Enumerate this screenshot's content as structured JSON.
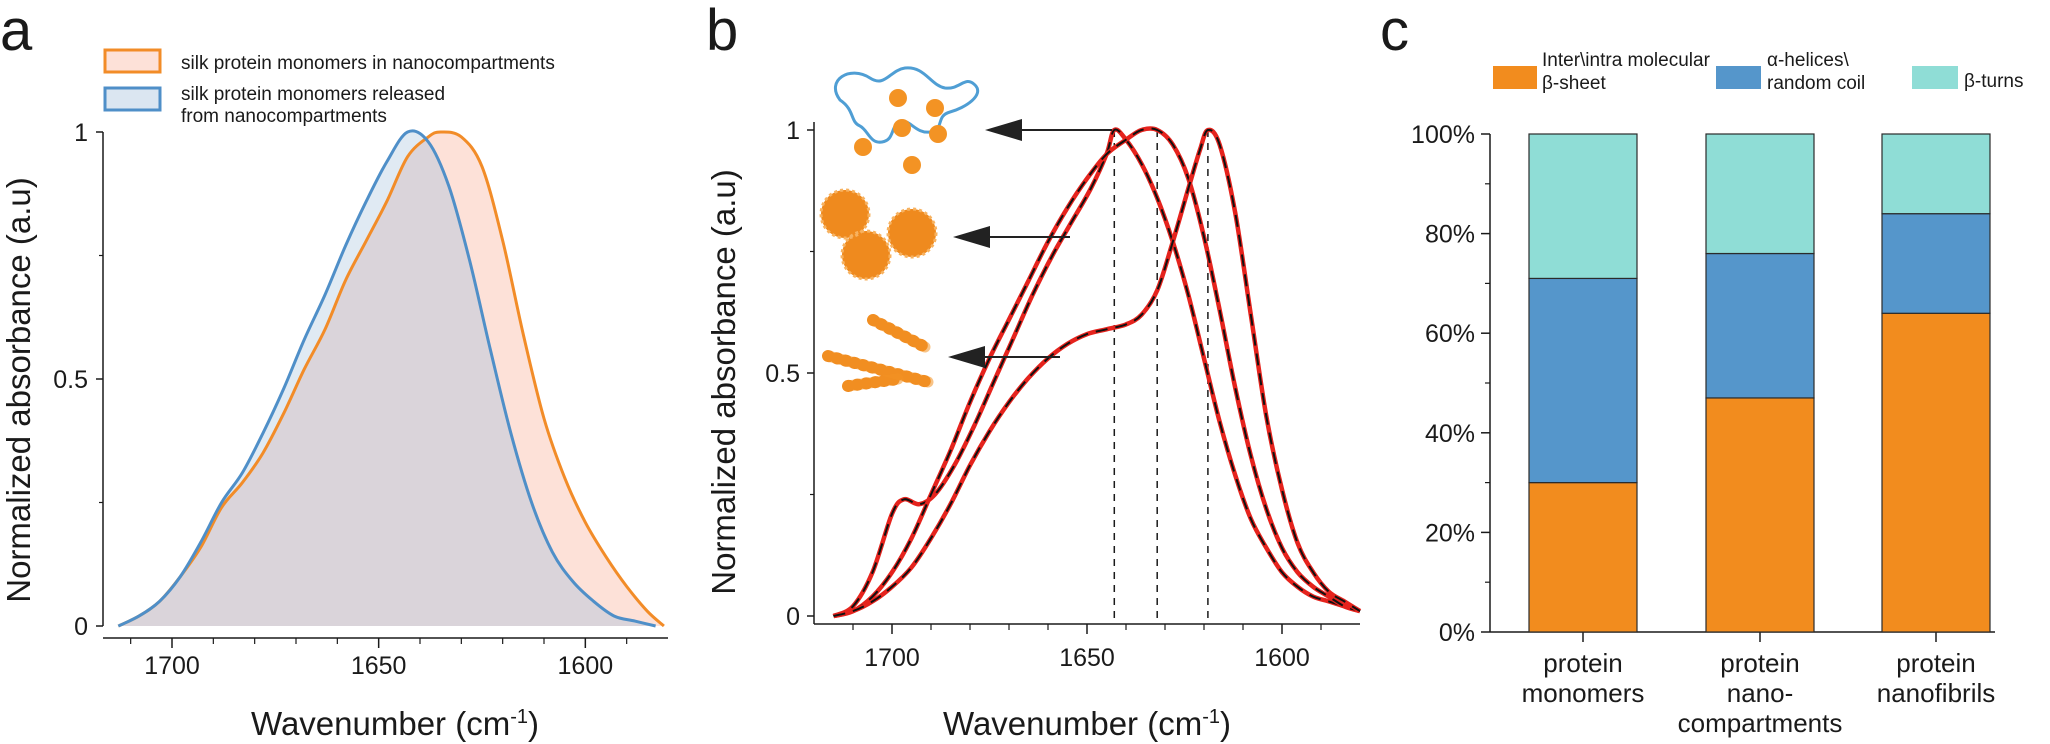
{
  "panels": {
    "a": {
      "letter": "a"
    },
    "b": {
      "letter": "b"
    },
    "c": {
      "letter": "c"
    }
  },
  "colors": {
    "orange": "#f28c28",
    "blue": "#4f8fc8",
    "orange_fill": "#fde1d8",
    "blue_fill": "#dbe6f1",
    "overlap_fill": "#dad4da",
    "fit_red": "#e5231d",
    "beta_sheet": "#f28c1e",
    "helix": "#5596cb",
    "turns": "#8fddd6",
    "arrow": "#222222"
  },
  "chart_data": [
    {
      "type": "area",
      "panel": "a",
      "xlabel": "Wavenumber (cm",
      "xlabel_sup": "-1",
      "xlabel_end": ")",
      "ylabel": "Normalized absorbance (a.u)",
      "xlim": [
        1715,
        1580
      ],
      "ylim": [
        0,
        1
      ],
      "x_ticks": [
        1700,
        1650,
        1600
      ],
      "x_minor_ticks": [
        1710,
        1690,
        1680,
        1670,
        1660,
        1640,
        1630,
        1620,
        1610,
        1590
      ],
      "y_ticks": [
        0,
        0.5,
        1
      ],
      "y_tick_labels": [
        "0",
        "0.5",
        "1"
      ],
      "series": [
        {
          "name": "silk protein monomers in nanocompartments",
          "color": "orange",
          "x": [
            1713,
            1708,
            1703,
            1698,
            1693,
            1688,
            1683,
            1678,
            1673,
            1668,
            1663,
            1658,
            1653,
            1648,
            1643,
            1638,
            1635,
            1630,
            1625,
            1620,
            1615,
            1610,
            1605,
            1600,
            1595,
            1590,
            1585,
            1581
          ],
          "y": [
            0.0,
            0.02,
            0.05,
            0.1,
            0.16,
            0.24,
            0.29,
            0.35,
            0.43,
            0.52,
            0.6,
            0.7,
            0.78,
            0.86,
            0.95,
            0.99,
            1.0,
            0.99,
            0.93,
            0.78,
            0.59,
            0.42,
            0.3,
            0.21,
            0.14,
            0.08,
            0.03,
            0.0
          ]
        },
        {
          "name": "silk protein monomers released from nanocompartments",
          "color": "blue",
          "x": [
            1713,
            1708,
            1703,
            1698,
            1693,
            1688,
            1683,
            1678,
            1673,
            1668,
            1663,
            1658,
            1653,
            1648,
            1643,
            1638,
            1633,
            1628,
            1623,
            1618,
            1613,
            1608,
            1603,
            1598,
            1593,
            1588,
            1583
          ],
          "y": [
            0.0,
            0.02,
            0.05,
            0.1,
            0.17,
            0.25,
            0.31,
            0.39,
            0.48,
            0.58,
            0.67,
            0.77,
            0.86,
            0.94,
            1.0,
            0.98,
            0.89,
            0.74,
            0.56,
            0.39,
            0.25,
            0.15,
            0.09,
            0.05,
            0.02,
            0.01,
            0.0
          ]
        }
      ]
    },
    {
      "type": "line",
      "panel": "b",
      "xlabel": "Wavenumber (cm",
      "xlabel_sup": "-1",
      "xlabel_end": ")",
      "ylabel": "Normalized absorbance (a.u)",
      "xlim": [
        1720,
        1580
      ],
      "ylim": [
        0,
        1
      ],
      "x_ticks": [
        1700,
        1650,
        1600
      ],
      "x_minor_ticks": [
        1710,
        1690,
        1680,
        1670,
        1660,
        1640,
        1630,
        1620,
        1610,
        1590
      ],
      "y_ticks": [
        0,
        0.5,
        1
      ],
      "y_tick_labels": [
        "0",
        "0.5",
        "1"
      ],
      "peak_lines": [
        1643,
        1632,
        1619
      ],
      "series": [
        {
          "name": "protein monomers",
          "x": [
            1715,
            1710,
            1705,
            1700,
            1697,
            1693,
            1689,
            1684,
            1679,
            1674,
            1669,
            1664,
            1659,
            1654,
            1649,
            1645,
            1643,
            1640,
            1636,
            1632,
            1628,
            1624,
            1620,
            1616,
            1612,
            1608,
            1604,
            1600,
            1596,
            1592,
            1588,
            1584,
            1580
          ],
          "y": [
            0.0,
            0.02,
            0.09,
            0.21,
            0.24,
            0.23,
            0.25,
            0.31,
            0.39,
            0.48,
            0.57,
            0.66,
            0.74,
            0.81,
            0.88,
            0.95,
            1.0,
            0.98,
            0.93,
            0.86,
            0.77,
            0.66,
            0.53,
            0.4,
            0.29,
            0.2,
            0.14,
            0.09,
            0.06,
            0.04,
            0.03,
            0.02,
            0.01
          ]
        },
        {
          "name": "protein nano-compartments",
          "x": [
            1715,
            1710,
            1705,
            1700,
            1695,
            1690,
            1685,
            1680,
            1675,
            1670,
            1665,
            1660,
            1655,
            1650,
            1645,
            1640,
            1636,
            1632,
            1628,
            1624,
            1620,
            1616,
            1612,
            1608,
            1604,
            1600,
            1596,
            1592,
            1588,
            1584,
            1580
          ],
          "y": [
            0.0,
            0.01,
            0.04,
            0.09,
            0.16,
            0.25,
            0.34,
            0.44,
            0.53,
            0.61,
            0.69,
            0.77,
            0.84,
            0.9,
            0.95,
            0.98,
            1.0,
            1.0,
            0.97,
            0.9,
            0.78,
            0.63,
            0.47,
            0.33,
            0.22,
            0.14,
            0.09,
            0.06,
            0.04,
            0.02,
            0.01
          ]
        },
        {
          "name": "protein nanofibrils",
          "x": [
            1715,
            1710,
            1705,
            1700,
            1695,
            1690,
            1685,
            1680,
            1675,
            1670,
            1665,
            1660,
            1655,
            1650,
            1645,
            1640,
            1636,
            1632,
            1628,
            1624,
            1621,
            1619,
            1616,
            1612,
            1608,
            1604,
            1600,
            1596,
            1592,
            1588,
            1584,
            1580
          ],
          "y": [
            0.0,
            0.01,
            0.03,
            0.06,
            0.1,
            0.16,
            0.23,
            0.31,
            0.38,
            0.44,
            0.49,
            0.53,
            0.56,
            0.58,
            0.59,
            0.6,
            0.62,
            0.67,
            0.77,
            0.88,
            0.96,
            1.0,
            0.97,
            0.83,
            0.62,
            0.41,
            0.26,
            0.15,
            0.09,
            0.05,
            0.03,
            0.01
          ]
        }
      ]
    },
    {
      "type": "bar",
      "panel": "c",
      "categories": [
        "protein monomers",
        "protein nano-compartments",
        "protein nanofibrils"
      ],
      "category_lines": [
        [
          "protein",
          "monomers"
        ],
        [
          "protein",
          "nano-",
          "compartments"
        ],
        [
          "protein",
          "nanofibrils"
        ]
      ],
      "y_ticks": [
        0,
        20,
        40,
        60,
        80,
        100
      ],
      "y_tick_labels": [
        "0%",
        "20%",
        "40%",
        "60%",
        "80%",
        "100%"
      ],
      "ylim": [
        0,
        100
      ],
      "series": [
        {
          "key": "beta_sheet",
          "legend_lines": [
            "Inter\\intra molecular",
            "β-sheet"
          ],
          "color": "beta_sheet",
          "values": [
            30,
            47,
            64
          ]
        },
        {
          "key": "helix",
          "legend_lines": [
            "α-helices\\",
            "random coil"
          ],
          "color": "helix",
          "values": [
            41,
            29,
            20
          ]
        },
        {
          "key": "turns",
          "legend_lines": [
            "β-turns"
          ],
          "color": "turns",
          "values": [
            29,
            24,
            16
          ]
        }
      ]
    }
  ]
}
